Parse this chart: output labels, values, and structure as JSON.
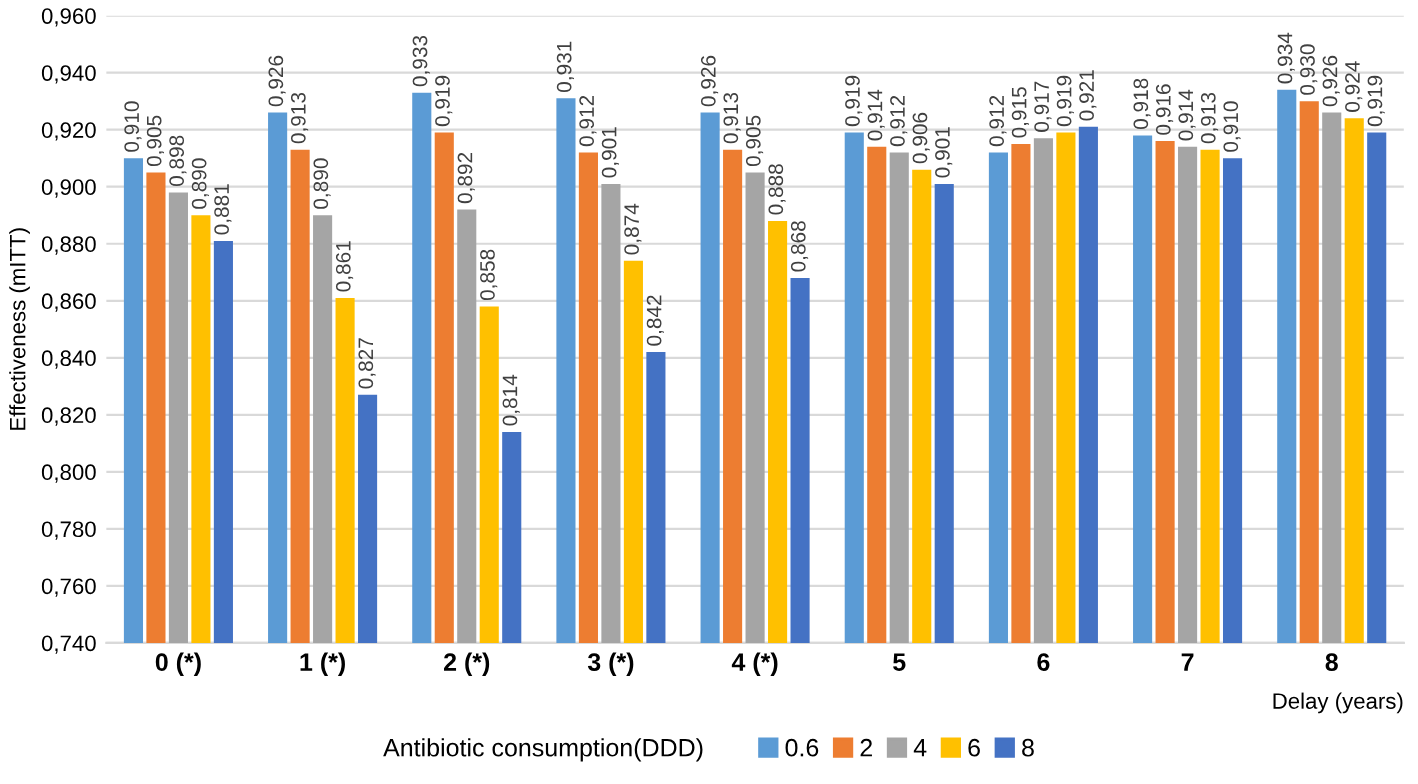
{
  "chart_data": {
    "type": "bar",
    "xlabel": "Delay (years)",
    "ylabel": "Effectiveness (mITT)",
    "legend_title": "Antibiotic consumption(DDD)",
    "categories": [
      "0 (*)",
      "1 (*)",
      "2 (*)",
      "3 (*)",
      "4 (*)",
      "5",
      "6",
      "7",
      "8"
    ],
    "series": [
      {
        "name": "0.6",
        "color": "#5b9bd5",
        "values": [
          0.91,
          0.926,
          0.933,
          0.931,
          0.926,
          0.919,
          0.912,
          0.918,
          0.934
        ],
        "value_labels": [
          "0,910",
          "0,926",
          "0,933",
          "0,931",
          "0,926",
          "0,919",
          "0,912",
          "0,918",
          "0,934"
        ]
      },
      {
        "name": "2",
        "color": "#ed7d31",
        "values": [
          0.905,
          0.913,
          0.919,
          0.912,
          0.913,
          0.914,
          0.915,
          0.916,
          0.93
        ],
        "value_labels": [
          "0,905",
          "0,913",
          "0,919",
          "0,912",
          "0,913",
          "0,914",
          "0,915",
          "0,916",
          "0,930"
        ]
      },
      {
        "name": "4",
        "color": "#a5a5a5",
        "values": [
          0.898,
          0.89,
          0.892,
          0.901,
          0.905,
          0.912,
          0.917,
          0.914,
          0.926
        ],
        "value_labels": [
          "0,898",
          "0,890",
          "0,892",
          "0,901",
          "0,905",
          "0,912",
          "0,917",
          "0,914",
          "0,926"
        ]
      },
      {
        "name": "6",
        "color": "#ffc000",
        "values": [
          0.89,
          0.861,
          0.858,
          0.874,
          0.888,
          0.906,
          0.919,
          0.913,
          0.924
        ],
        "value_labels": [
          "0,890",
          "0,861",
          "0,858",
          "0,874",
          "0,888",
          "0,906",
          "0,919",
          "0,913",
          "0,924"
        ]
      },
      {
        "name": "8",
        "color": "#4472c4",
        "values": [
          0.881,
          0.827,
          0.814,
          0.842,
          0.868,
          0.901,
          0.921,
          0.91,
          0.919
        ],
        "value_labels": [
          "0,881",
          "0,827",
          "0,814",
          "0,842",
          "0,868",
          "0,901",
          "0,921",
          "0,910",
          "0,919"
        ]
      }
    ],
    "ylim": [
      0.74,
      0.96
    ],
    "yticks": [
      {
        "value": 0.74,
        "label": "0,740"
      },
      {
        "value": 0.76,
        "label": "0,760"
      },
      {
        "value": 0.78,
        "label": "0,780"
      },
      {
        "value": 0.8,
        "label": "0,800"
      },
      {
        "value": 0.82,
        "label": "0,820"
      },
      {
        "value": 0.84,
        "label": "0,840"
      },
      {
        "value": 0.86,
        "label": "0,860"
      },
      {
        "value": 0.88,
        "label": "0,880"
      },
      {
        "value": 0.9,
        "label": "0,900"
      },
      {
        "value": 0.92,
        "label": "0,920"
      },
      {
        "value": 0.94,
        "label": "0,940"
      },
      {
        "value": 0.96,
        "label": "0,960"
      }
    ],
    "grid": "y",
    "legend": "bottom"
  }
}
